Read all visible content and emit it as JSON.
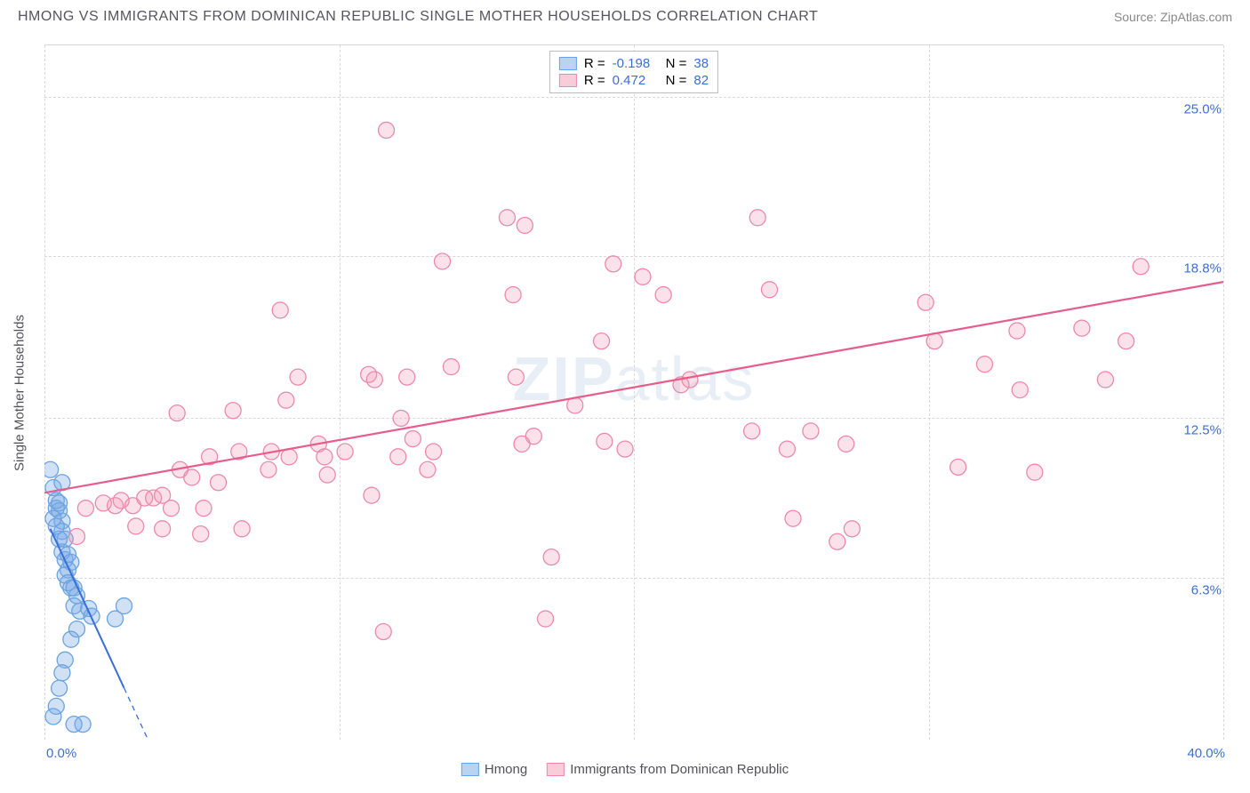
{
  "header": {
    "title": "HMONG VS IMMIGRANTS FROM DOMINICAN REPUBLIC SINGLE MOTHER HOUSEHOLDS CORRELATION CHART",
    "source": "Source: ZipAtlas.com"
  },
  "chart": {
    "type": "scatter",
    "watermark": "ZIPatlas",
    "y_axis_title": "Single Mother Households",
    "xlim": [
      0,
      40
    ],
    "ylim": [
      0,
      27
    ],
    "x_corner_min": "0.0%",
    "x_corner_max": "40.0%",
    "y_ticks": [
      {
        "v": 6.3,
        "label": "6.3%"
      },
      {
        "v": 12.5,
        "label": "12.5%"
      },
      {
        "v": 18.8,
        "label": "18.8%"
      },
      {
        "v": 25.0,
        "label": "25.0%"
      }
    ],
    "x_ticks": [
      0,
      10,
      20,
      30,
      40
    ],
    "background_color": "#ffffff",
    "grid_color": "#d8d8d8",
    "tick_label_color": "#3a6fd8",
    "axis_label_color": "#525258",
    "marker_radius": 9,
    "series": [
      {
        "name": "Hmong",
        "legend_label": "Hmong",
        "R": "-0.198",
        "N": "38",
        "color_fill": "rgba(120,170,230,0.35)",
        "color_stroke": "#6aa3e0",
        "swatch_fill": "#b9d4f0",
        "swatch_border": "#6aa3e0",
        "trend": {
          "x1": 0.2,
          "y1": 8.2,
          "x2": 4.2,
          "y2": -1.7,
          "solid_until_x": 2.7,
          "color": "#3a6fd8",
          "width": 2
        },
        "points": [
          [
            0.2,
            10.5
          ],
          [
            0.3,
            9.8
          ],
          [
            0.4,
            9.0
          ],
          [
            0.5,
            8.9
          ],
          [
            0.6,
            8.5
          ],
          [
            0.6,
            8.1
          ],
          [
            0.7,
            7.8
          ],
          [
            0.6,
            7.3
          ],
          [
            0.7,
            7.0
          ],
          [
            0.8,
            7.2
          ],
          [
            0.9,
            6.9
          ],
          [
            0.8,
            6.6
          ],
          [
            0.7,
            6.4
          ],
          [
            0.8,
            6.1
          ],
          [
            0.9,
            5.9
          ],
          [
            1.0,
            5.9
          ],
          [
            1.1,
            5.6
          ],
          [
            1.0,
            5.2
          ],
          [
            1.2,
            5.0
          ],
          [
            1.5,
            5.1
          ],
          [
            1.6,
            4.8
          ],
          [
            2.4,
            4.7
          ],
          [
            2.7,
            5.2
          ],
          [
            1.1,
            4.3
          ],
          [
            0.9,
            3.9
          ],
          [
            0.7,
            3.1
          ],
          [
            0.6,
            2.6
          ],
          [
            0.5,
            2.0
          ],
          [
            0.4,
            1.3
          ],
          [
            0.3,
            0.9
          ],
          [
            1.3,
            0.6
          ],
          [
            1.0,
            0.6
          ],
          [
            0.5,
            7.8
          ],
          [
            0.4,
            8.3
          ],
          [
            0.4,
            9.3
          ],
          [
            0.3,
            8.6
          ],
          [
            0.5,
            9.2
          ],
          [
            0.6,
            10.0
          ]
        ]
      },
      {
        "name": "Dominican",
        "legend_label": "Immigrants from Dominican Republic",
        "R": "0.472",
        "N": "82",
        "color_fill": "rgba(240,150,180,0.28)",
        "color_stroke": "#ec89aa",
        "swatch_fill": "#f7cdd9",
        "swatch_border": "#ec89aa",
        "trend": {
          "x1": 0,
          "y1": 9.6,
          "x2": 40,
          "y2": 17.8,
          "color": "#e75d8a",
          "width": 2.2
        },
        "points": [
          [
            1.1,
            7.9
          ],
          [
            1.4,
            9.0
          ],
          [
            2.0,
            9.2
          ],
          [
            2.4,
            9.1
          ],
          [
            2.6,
            9.3
          ],
          [
            3.0,
            9.1
          ],
          [
            3.4,
            9.4
          ],
          [
            3.1,
            8.3
          ],
          [
            3.7,
            9.4
          ],
          [
            4.0,
            9.5
          ],
          [
            4.0,
            8.2
          ],
          [
            4.3,
            9.0
          ],
          [
            4.6,
            10.5
          ],
          [
            4.5,
            12.7
          ],
          [
            5.0,
            10.2
          ],
          [
            5.3,
            8.0
          ],
          [
            5.4,
            9.0
          ],
          [
            5.6,
            11.0
          ],
          [
            5.9,
            10.0
          ],
          [
            6.4,
            12.8
          ],
          [
            6.6,
            11.2
          ],
          [
            6.7,
            8.2
          ],
          [
            7.6,
            10.5
          ],
          [
            7.7,
            11.2
          ],
          [
            8.0,
            16.7
          ],
          [
            8.2,
            13.2
          ],
          [
            8.3,
            11.0
          ],
          [
            8.6,
            14.1
          ],
          [
            9.3,
            11.5
          ],
          [
            9.5,
            11.0
          ],
          [
            9.6,
            10.3
          ],
          [
            10.2,
            11.2
          ],
          [
            11.0,
            14.2
          ],
          [
            11.1,
            9.5
          ],
          [
            11.5,
            4.2
          ],
          [
            11.6,
            23.7
          ],
          [
            12.0,
            11.0
          ],
          [
            12.1,
            12.5
          ],
          [
            12.3,
            14.1
          ],
          [
            12.5,
            11.7
          ],
          [
            13.0,
            10.5
          ],
          [
            13.2,
            11.2
          ],
          [
            13.5,
            18.6
          ],
          [
            13.8,
            14.5
          ],
          [
            15.7,
            20.3
          ],
          [
            15.9,
            17.3
          ],
          [
            16.0,
            14.1
          ],
          [
            16.2,
            11.5
          ],
          [
            16.3,
            20.0
          ],
          [
            16.6,
            11.8
          ],
          [
            17.0,
            4.7
          ],
          [
            17.2,
            7.1
          ],
          [
            18.0,
            13.0
          ],
          [
            18.9,
            15.5
          ],
          [
            19.0,
            11.6
          ],
          [
            19.3,
            18.5
          ],
          [
            19.7,
            11.3
          ],
          [
            20.3,
            18.0
          ],
          [
            21.0,
            17.3
          ],
          [
            21.6,
            13.8
          ],
          [
            21.9,
            14.0
          ],
          [
            24.2,
            20.3
          ],
          [
            24.6,
            17.5
          ],
          [
            25.2,
            11.3
          ],
          [
            25.4,
            8.6
          ],
          [
            26.0,
            12.0
          ],
          [
            26.9,
            7.7
          ],
          [
            27.2,
            11.5
          ],
          [
            27.4,
            8.2
          ],
          [
            29.9,
            17.0
          ],
          [
            30.2,
            15.5
          ],
          [
            31.0,
            10.6
          ],
          [
            31.9,
            14.6
          ],
          [
            33.0,
            15.9
          ],
          [
            33.1,
            13.6
          ],
          [
            33.6,
            10.4
          ],
          [
            35.2,
            16.0
          ],
          [
            36.0,
            14.0
          ],
          [
            36.7,
            15.5
          ],
          [
            37.2,
            18.4
          ],
          [
            24.0,
            12.0
          ],
          [
            11.2,
            14.0
          ]
        ]
      }
    ]
  },
  "legend_labels": {
    "R": "R =",
    "N": "N ="
  }
}
